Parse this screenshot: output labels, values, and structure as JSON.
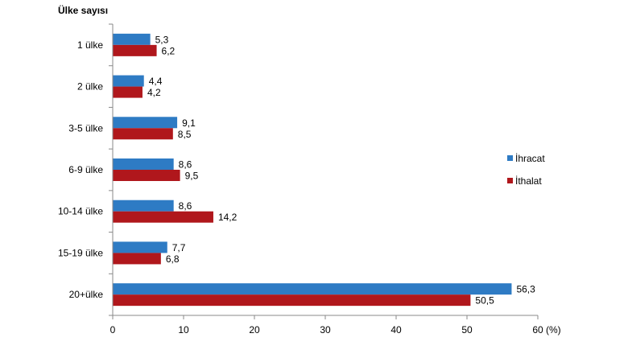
{
  "chart_data": {
    "type": "bar",
    "orientation": "horizontal",
    "ylabel": "Ülke sayısı",
    "xlabel_unit": "(%)",
    "categories": [
      "1 ülke",
      "2 ülke",
      "3-5 ülke",
      "6-9 ülke",
      "10-14 ülke",
      "15-19 ülke",
      "20+ülke"
    ],
    "series": [
      {
        "name": "İhracat",
        "color": "#2E7BC4",
        "values": [
          5.3,
          4.4,
          9.1,
          8.6,
          8.6,
          7.7,
          56.3
        ],
        "labels": [
          "5,3",
          "4,4",
          "9,1",
          "8,6",
          "8,6",
          "7,7",
          "56,3"
        ]
      },
      {
        "name": "İthalat",
        "color": "#B0171C",
        "values": [
          6.2,
          4.2,
          8.5,
          9.5,
          14.2,
          6.8,
          50.5
        ],
        "labels": [
          "6,2",
          "4,2",
          "8,5",
          "9,5",
          "14,2",
          "6,8",
          "50,5"
        ]
      }
    ],
    "xlim": [
      0,
      60
    ],
    "xticks": [
      "0",
      "10",
      "20",
      "30",
      "40",
      "50",
      "60"
    ],
    "grid": false,
    "legend_position": "right"
  }
}
